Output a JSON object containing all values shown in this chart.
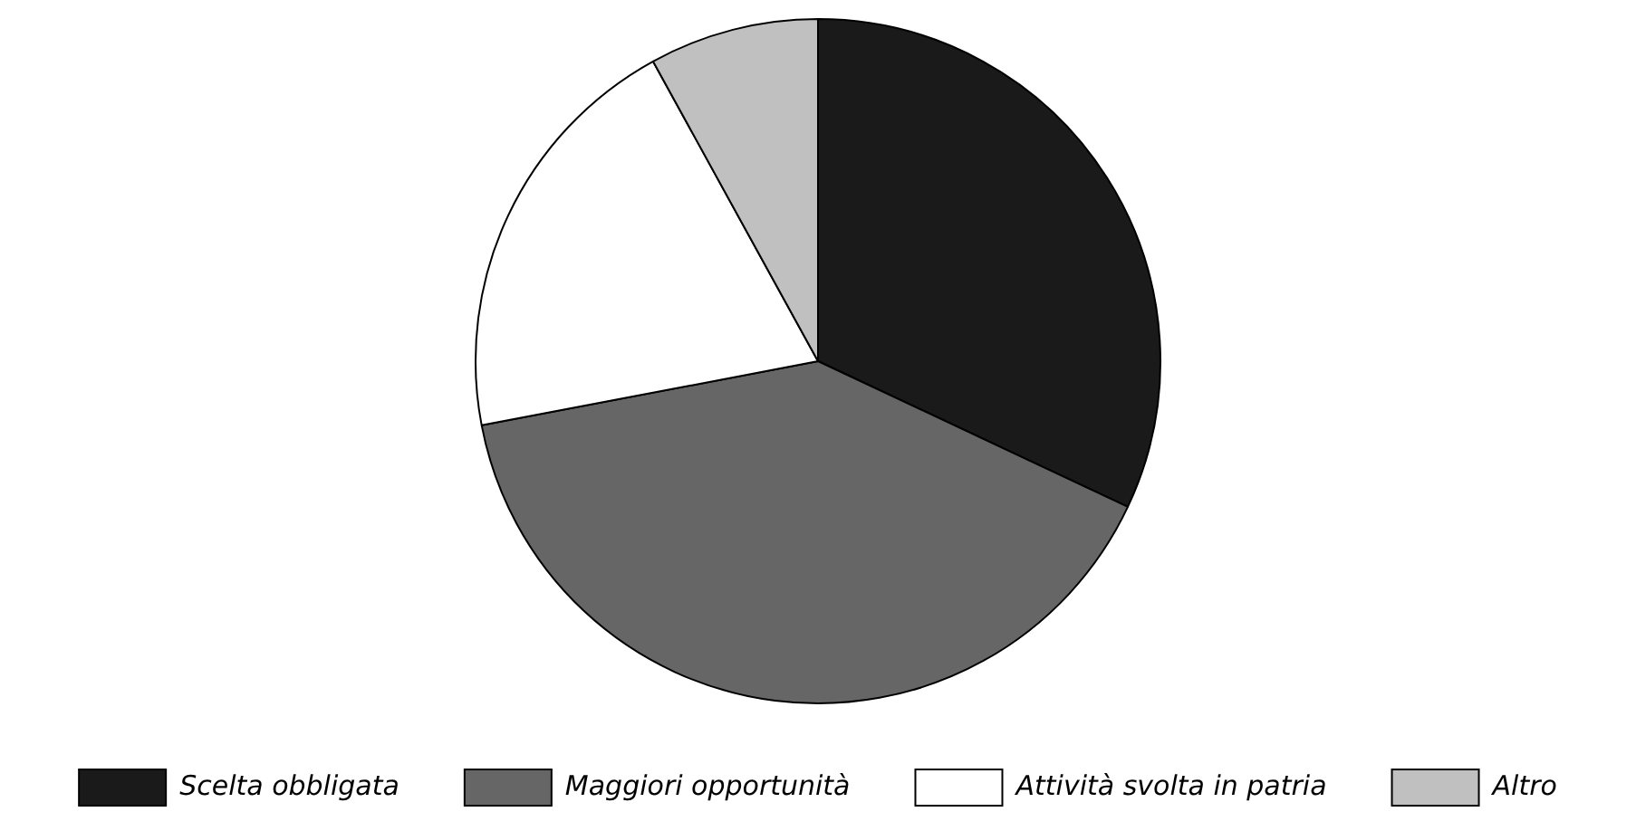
{
  "chart_data": {
    "type": "pie",
    "categories": [
      "Scelta obbligata",
      "Maggiori opportunità",
      "Attività svolta in patria",
      "Altro"
    ],
    "values": [
      32,
      40,
      20,
      8
    ],
    "colors": [
      "#1a1a1a",
      "#666666",
      "#ffffff",
      "#c0c0c0"
    ],
    "legend": "bottom"
  }
}
